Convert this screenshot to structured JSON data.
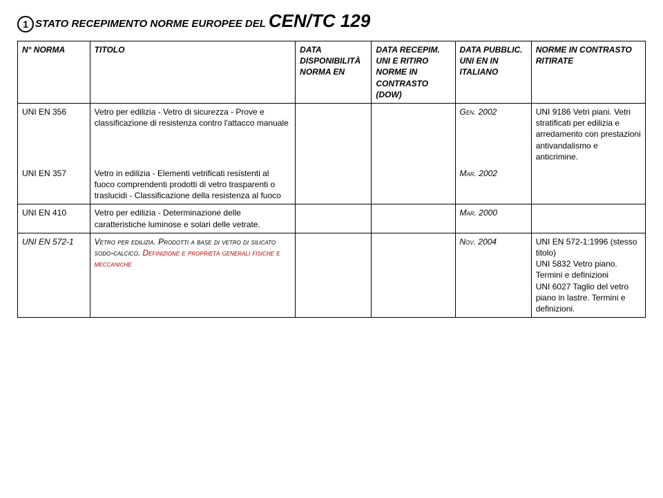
{
  "title": {
    "num": "1",
    "prefix": "STATO RECEPIMENTO NORME EUROPEE DEL ",
    "suffix": "CEN/TC 129"
  },
  "headers": {
    "h0": "N° NORMA",
    "h1": "TITOLO",
    "h2": "DATA DISPONIBILITÀ NORMA EN",
    "h3": "DATA RECEPIM. UNI E RITIRO NORME IN CONTRASTO (DOW)",
    "h4": "DATA PUBBLIC. UNI EN IN ITALIANO",
    "h5": "NORME IN CONTRASTO RITIRATE"
  },
  "rows": {
    "r0": {
      "c0": "UNI EN 356",
      "c1": "Vetro per edilizia - Vetro di sicurezza - Prove e classificazione di resistenza contro l'attacco manuale",
      "c4": "Gen. 2002",
      "c5": "UNI 9186 Vetri piani. Vetri stratificati per edilizia e arredamento con prestazioni antivandalismo e anticrimine."
    },
    "r1": {
      "c0": "UNI EN 357",
      "c1": "Vetro in edilizia - Elementi vetrificati resistenti al fuoco comprendenti prodotti di vetro trasparenti o traslucidi - Classificazione della resistenza al fuoco",
      "c4": "Mar. 2002"
    },
    "r2": {
      "c0": "UNI EN 410",
      "c1": "Vetro per edilizia - Determinazione delle caratteristiche luminose e solari delle vetrate.",
      "c4": "Mar. 2000"
    },
    "r3": {
      "c0": "UNI EN 572-1",
      "c1a": "Vetro per edilizia. Prodotti a base di vetro di silicato sodo-calcico.",
      "c1b": "Definizione e proprietà generali fisiche e meccaniche",
      "c4": "Nov. 2004",
      "c5": "UNI EN 572-1:1996 (stesso titolo)\nUNI 5832 Vetro piano. Termini e definizioni\nUNI 6027 Taglio del vetro piano in lastre. Termini e definizioni."
    }
  }
}
